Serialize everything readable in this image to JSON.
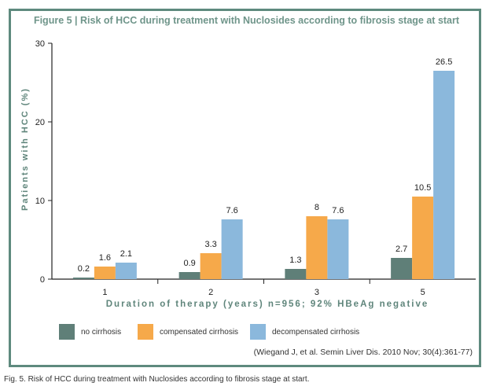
{
  "figure_title": "Figure 5 | Risk of HCC during treatment with Nuclosides according to fibrosis stage at start",
  "citation": "(Wiegand J, et al. Semin Liver Dis. 2010 Nov; 30(4):361-77)",
  "caption": "Fig. 5.  Risk of HCC during treatment with Nuclosides according to fibrosis stage at start.",
  "colors": {
    "frame": "#5e8a7e",
    "no_cirrhosis": "#5f7f78",
    "compensated": "#f6a94a",
    "decompensated": "#8bb8dc"
  },
  "chart_data": {
    "type": "bar",
    "title": "Figure 5 | Risk of HCC during treatment with Nuclosides according to fibrosis stage at start",
    "xlabel": "Duration of therapy (years) n=956; 92% HBeAg negative",
    "ylabel": "Patients with HCC (%)",
    "categories": [
      "1",
      "2",
      "3",
      "5"
    ],
    "ylim": [
      0,
      30
    ],
    "yticks": [
      "0",
      "10",
      "20",
      "30"
    ],
    "grid": false,
    "legend_position": "bottom",
    "series": [
      {
        "name": "no cirrhosis",
        "values": [
          0.2,
          0.9,
          1.3,
          2.7
        ],
        "labels": [
          "0.2",
          "0.9",
          "1.3",
          "2.7"
        ]
      },
      {
        "name": "compensated cirrhosis",
        "values": [
          1.6,
          3.3,
          8,
          10.5
        ],
        "labels": [
          "1.6",
          "3.3",
          "8",
          "10.5"
        ]
      },
      {
        "name": "decompensated cirrhosis",
        "values": [
          2.1,
          7.6,
          7.6,
          26.5
        ],
        "labels": [
          "2.1",
          "7.6",
          "7.6",
          "26.5"
        ]
      }
    ]
  }
}
